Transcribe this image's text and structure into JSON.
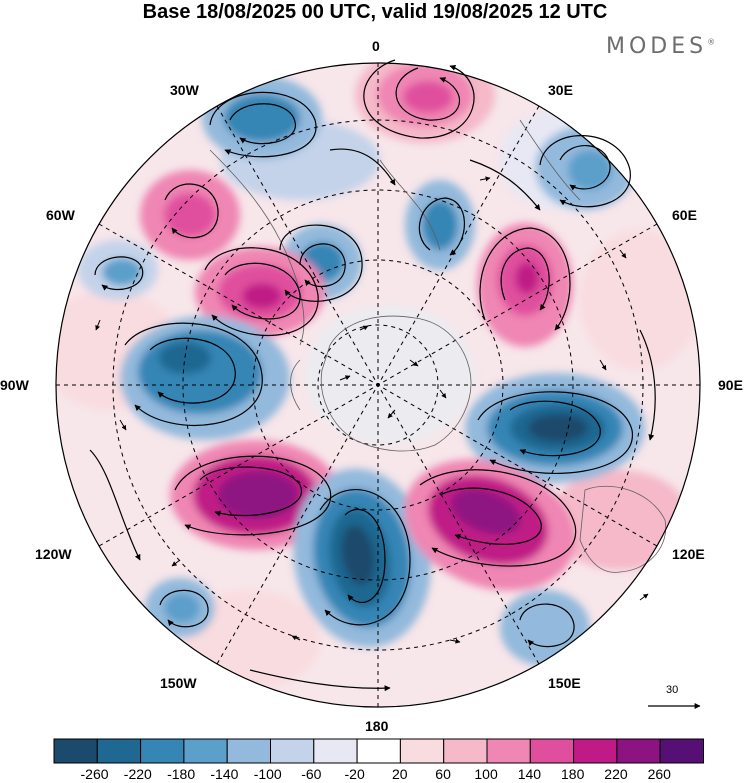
{
  "title": "Base 18/08/2025 00 UTC, valid 19/08/2025 12 UTC",
  "logo": "MODES",
  "logo_mark": "®",
  "longitude_labels": {
    "lon_0": "0",
    "lon_30e": "30E",
    "lon_60e": "60E",
    "lon_90e": "90E",
    "lon_120e": "120E",
    "lon_150e": "150E",
    "lon_180": "180",
    "lon_150w": "150W",
    "lon_120w": "120W",
    "lon_90w": "90W",
    "lon_60w": "60W",
    "lon_30w": "30W"
  },
  "reference_vector": "30",
  "colorbar": {
    "colors": [
      "#1c4a6c",
      "#1e6891",
      "#3585b5",
      "#5b9fcb",
      "#93b9dc",
      "#c4d3ea",
      "#e7e8f4",
      "#ffffff",
      "#f9dcdf",
      "#f5b9c9",
      "#ef86b3",
      "#e04f9e",
      "#c01a86",
      "#8e1382",
      "#561075"
    ],
    "labels": [
      "-260",
      "-220",
      "-180",
      "-140",
      "-100",
      "-60",
      "-20",
      "20",
      "60",
      "100",
      "140",
      "180",
      "220",
      "260"
    ]
  }
}
